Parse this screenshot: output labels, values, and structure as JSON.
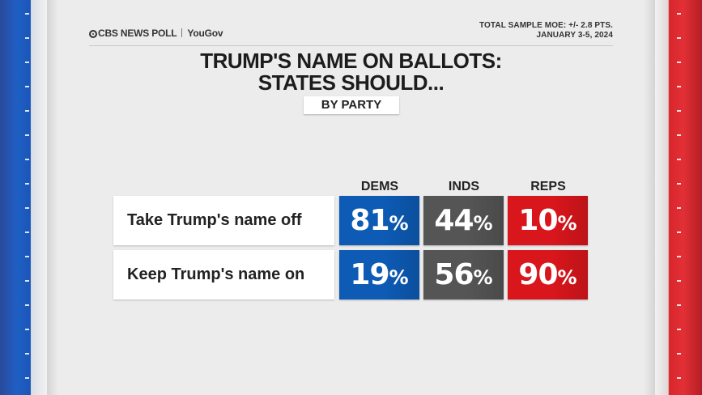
{
  "header": {
    "brand_1": "CBS NEWS POLL",
    "brand_2": "YouGov",
    "moe_line": "TOTAL SAMPLE MOE: +/- 2.8 PTS.",
    "date_line": "JANUARY 3-5, 2024"
  },
  "colors": {
    "dems": "#0d5bb5",
    "inds": "#555555",
    "reps": "#d9161c"
  },
  "chart_data": {
    "type": "table",
    "title": [
      "TRUMP'S NAME ON BALLOTS:",
      "STATES SHOULD..."
    ],
    "subtitle": "BY PARTY",
    "columns": [
      "DEMS",
      "INDS",
      "REPS"
    ],
    "percent_sign": "%",
    "rows": [
      {
        "label": "Take Trump's name off",
        "values": [
          81,
          44,
          10
        ]
      },
      {
        "label": "Keep Trump's name on",
        "values": [
          19,
          56,
          90
        ]
      }
    ]
  }
}
